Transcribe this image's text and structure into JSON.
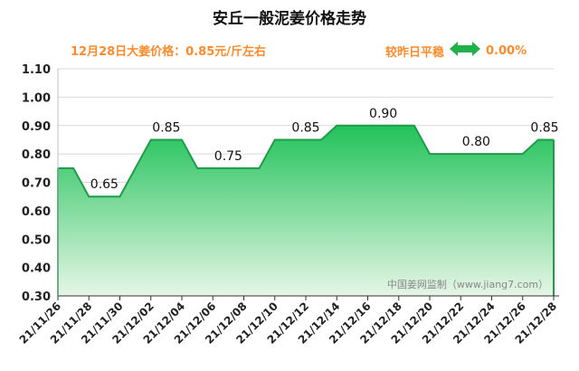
{
  "title": "安丘一般泥姜价格走势",
  "subtitle": "12月28日大姜价格：0.85元/斤左右",
  "compare": {
    "label": "较昨日平稳",
    "value": "0.00%"
  },
  "watermark": "中国姜网监制（www.jiang7.com）",
  "colors": {
    "line": "#1f9b4a",
    "fill_top": "#22c25a",
    "fill_bottom": "#e6f6e6",
    "accent": "#ff8a2a",
    "arrow": "#21b04a"
  },
  "chart_data": {
    "type": "area",
    "x_ticks": [
      "21/11/26",
      "21/11/28",
      "21/11/30",
      "21/12/02",
      "21/12/04",
      "21/12/06",
      "21/12/08",
      "21/12/10",
      "21/12/12",
      "21/12/14",
      "21/12/16",
      "21/12/18",
      "21/12/20",
      "21/12/22",
      "21/12/24",
      "21/12/26",
      "21/12/28"
    ],
    "y_ticks": [
      "0.30",
      "0.40",
      "0.50",
      "0.60",
      "0.70",
      "0.80",
      "0.90",
      "1.00",
      "1.10"
    ],
    "ylim": [
      0.3,
      1.1
    ],
    "x": [
      "21/11/26",
      "21/11/27",
      "21/11/28",
      "21/11/29",
      "21/11/30",
      "21/12/01",
      "21/12/02",
      "21/12/03",
      "21/12/04",
      "21/12/05",
      "21/12/06",
      "21/12/07",
      "21/12/08",
      "21/12/09",
      "21/12/10",
      "21/12/11",
      "21/12/12",
      "21/12/13",
      "21/12/14",
      "21/12/15",
      "21/12/16",
      "21/12/17",
      "21/12/18",
      "21/12/19",
      "21/12/20",
      "21/12/21",
      "21/12/22",
      "21/12/23",
      "21/12/24",
      "21/12/25",
      "21/12/26",
      "21/12/27",
      "21/12/28"
    ],
    "values": [
      0.75,
      0.75,
      0.65,
      0.65,
      0.65,
      0.75,
      0.85,
      0.85,
      0.85,
      0.75,
      0.75,
      0.75,
      0.75,
      0.75,
      0.85,
      0.85,
      0.85,
      0.85,
      0.9,
      0.9,
      0.9,
      0.9,
      0.9,
      0.9,
      0.8,
      0.8,
      0.8,
      0.8,
      0.8,
      0.8,
      0.8,
      0.85,
      0.85
    ],
    "data_labels": [
      {
        "index": 3,
        "text": "0.65"
      },
      {
        "index": 7,
        "text": "0.85"
      },
      {
        "index": 11,
        "text": "0.75"
      },
      {
        "index": 16,
        "text": "0.85"
      },
      {
        "index": 21,
        "text": "0.90"
      },
      {
        "index": 27,
        "text": "0.80"
      },
      {
        "index": 32,
        "text": "0.85"
      }
    ],
    "grid": true
  }
}
